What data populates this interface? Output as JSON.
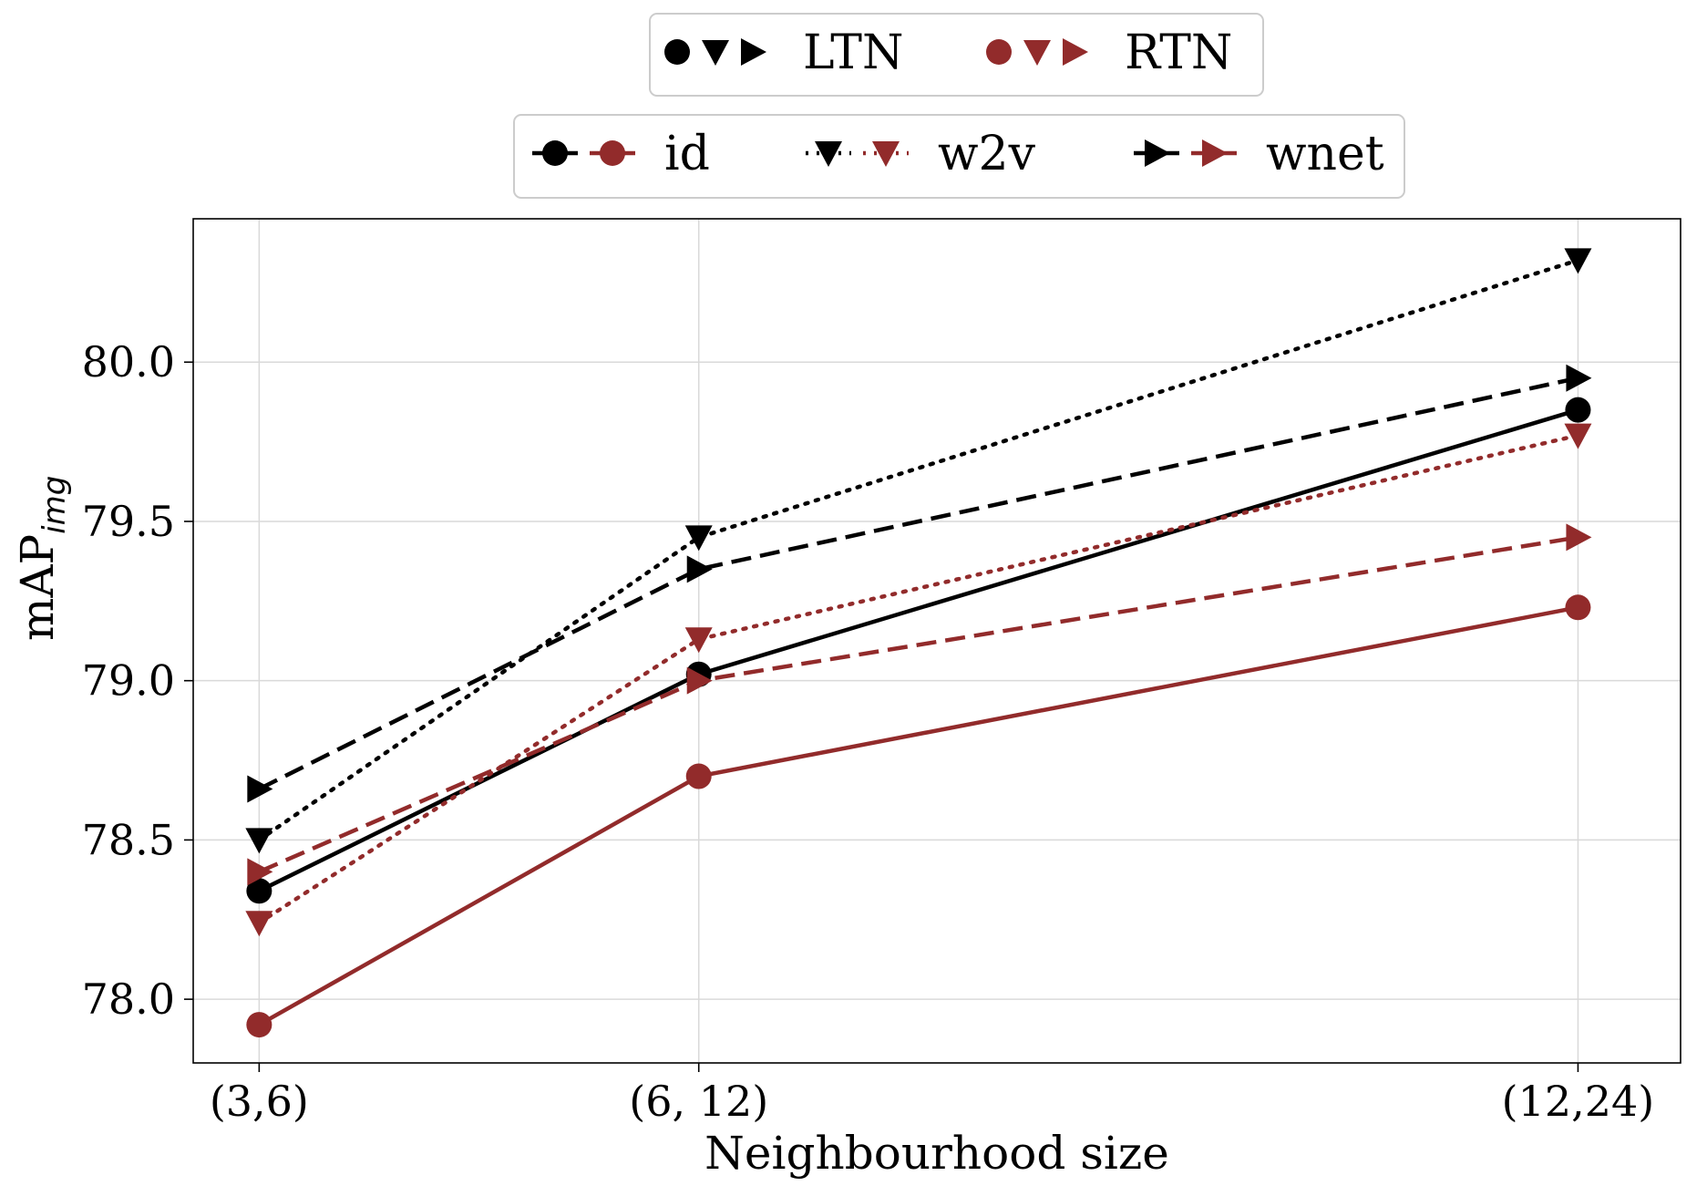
{
  "chart_data": {
    "type": "line",
    "categories": [
      "(3,6)",
      "(6, 12)",
      "(12,24)"
    ],
    "x": [
      3,
      6,
      12
    ],
    "xlabel": "Neighbourhood size",
    "ylabel": "mAP",
    "ylabel_sub": "img",
    "ylim": [
      77.8,
      80.45
    ],
    "yticks": [
      78.0,
      78.5,
      79.0,
      79.5,
      80.0
    ],
    "ytick_labels": [
      "78.0",
      "78.5",
      "79.0",
      "79.5",
      "80.0"
    ],
    "grid": true,
    "series": [
      {
        "name": "LTN id",
        "model": "LTN",
        "embedding": "id",
        "values": [
          78.34,
          79.02,
          79.85
        ],
        "color": "#000000",
        "linestyle": "solid",
        "marker": "circle"
      },
      {
        "name": "LTN w2v",
        "model": "LTN",
        "embedding": "w2v",
        "values": [
          78.5,
          79.45,
          80.32
        ],
        "color": "#000000",
        "linestyle": "dotted",
        "marker": "triangle-down"
      },
      {
        "name": "LTN wnet",
        "model": "LTN",
        "embedding": "wnet",
        "values": [
          78.66,
          79.35,
          79.95
        ],
        "color": "#000000",
        "linestyle": "dashed",
        "marker": "triangle-right"
      },
      {
        "name": "RTN id",
        "model": "RTN",
        "embedding": "id",
        "values": [
          77.92,
          78.7,
          79.23
        ],
        "color": "#922b2b",
        "linestyle": "solid",
        "marker": "circle"
      },
      {
        "name": "RTN w2v",
        "model": "RTN",
        "embedding": "w2v",
        "values": [
          78.24,
          79.13,
          79.77
        ],
        "color": "#922b2b",
        "linestyle": "dotted",
        "marker": "triangle-down"
      },
      {
        "name": "RTN wnet",
        "model": "RTN",
        "embedding": "wnet",
        "values": [
          78.4,
          79.0,
          79.45
        ],
        "color": "#922b2b",
        "linestyle": "dashed",
        "marker": "triangle-right"
      }
    ],
    "legend_models": [
      {
        "label": "LTN",
        "color": "#000000"
      },
      {
        "label": "RTN",
        "color": "#922b2b"
      }
    ],
    "legend_embeddings": [
      {
        "label": "id",
        "marker": "circle",
        "linestyle": "solid"
      },
      {
        "label": "w2v",
        "marker": "triangle-down",
        "linestyle": "dotted"
      },
      {
        "label": "wnet",
        "marker": "triangle-right",
        "linestyle": "dashed"
      }
    ],
    "legend_position": "top-center, above plot"
  }
}
